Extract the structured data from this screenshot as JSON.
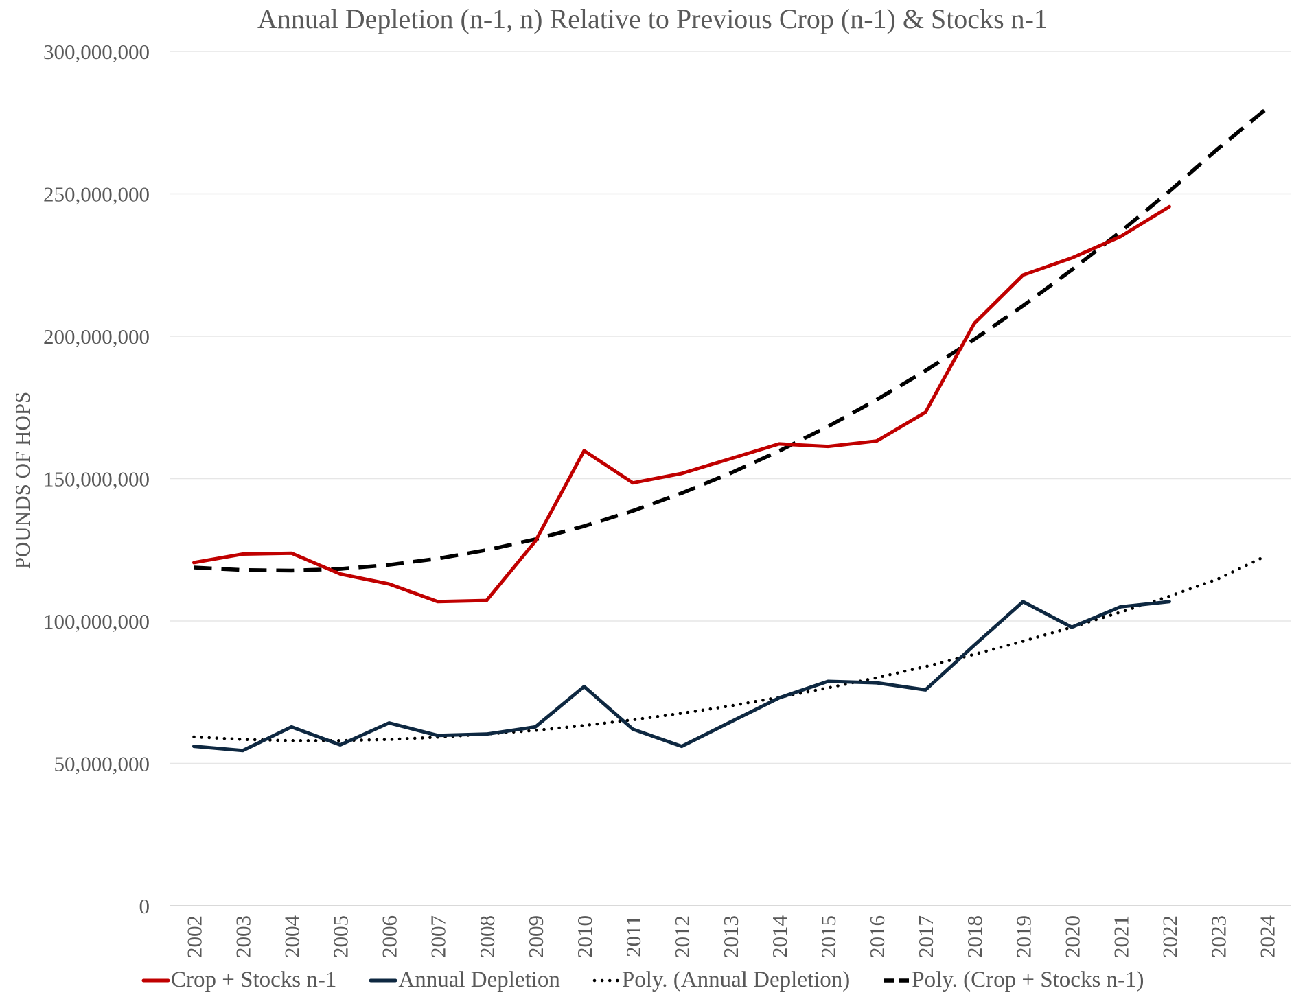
{
  "chart_data": {
    "type": "line",
    "title": "Annual Depletion (n-1, n) Relative to Previous Crop (n-1) & Stocks n-1",
    "xlabel": "",
    "ylabel": "POUNDS OF HOPS",
    "ylim": [
      0,
      300000000
    ],
    "yticks": [
      "0",
      "50,000,000",
      "100,000,000",
      "150,000,000",
      "200,000,000",
      "250,000,000",
      "300,000,000"
    ],
    "ytick_values": [
      0,
      50000000,
      100000000,
      150000000,
      200000000,
      250000000,
      300000000
    ],
    "categories": [
      "2002",
      "2003",
      "2004",
      "2005",
      "2006",
      "2007",
      "2008",
      "2009",
      "2010",
      "2011",
      "2012",
      "2013",
      "2014",
      "2015",
      "2016",
      "2017",
      "2018",
      "2019",
      "2020",
      "2021",
      "2022",
      "2023",
      "2024"
    ],
    "grid": true,
    "legend_position": "bottom",
    "series": [
      {
        "name": "Crop + Stocks n-1",
        "color": "#c00000",
        "style": "solid",
        "values": [
          120500000,
          123500000,
          123800000,
          116500000,
          113000000,
          106800000,
          107200000,
          128000000,
          159800000,
          148500000,
          151800000,
          157000000,
          162200000,
          161300000,
          163200000,
          173300000,
          204500000,
          221500000,
          227500000,
          235000000,
          245500000,
          null,
          null
        ]
      },
      {
        "name": "Annual Depletion",
        "color": "#0e2841",
        "style": "solid",
        "values": [
          56000000,
          54500000,
          62800000,
          56500000,
          64200000,
          59800000,
          60300000,
          62800000,
          77000000,
          62000000,
          56000000,
          64500000,
          73000000,
          78800000,
          78300000,
          75800000,
          91500000,
          106800000,
          97800000,
          105000000,
          106800000,
          null,
          null
        ]
      },
      {
        "name": "Poly. (Annual Depletion)",
        "color": "#000000",
        "style": "dotted",
        "values": [
          59300000,
          58400000,
          58000000,
          58000000,
          58400000,
          59200000,
          60300000,
          61600000,
          63300000,
          65300000,
          67600000,
          70200000,
          73200000,
          76500000,
          80100000,
          84000000,
          88300000,
          92900000,
          97800000,
          103100000,
          108700000,
          114800000,
          123000000
        ]
      },
      {
        "name": "Poly. (Crop + Stocks n-1)",
        "color": "#000000",
        "style": "dashed",
        "values": [
          118800000,
          117900000,
          117700000,
          118300000,
          119700000,
          121900000,
          124900000,
          128700000,
          133300000,
          138700000,
          144900000,
          151900000,
          159700000,
          168300000,
          177700000,
          187900000,
          198900000,
          210700000,
          223300000,
          236700000,
          250900000,
          265900000,
          280000000
        ]
      }
    ]
  }
}
